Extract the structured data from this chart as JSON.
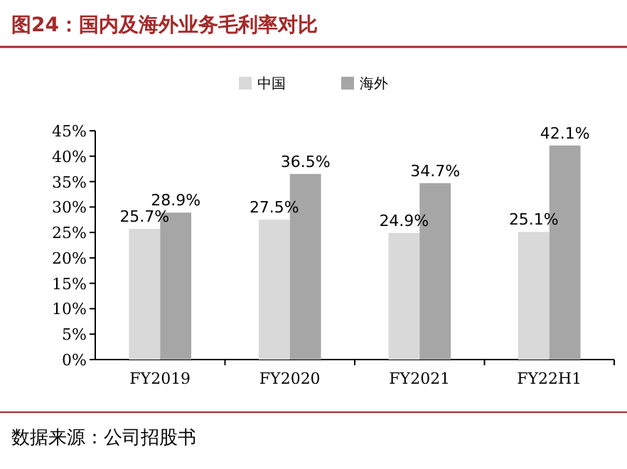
{
  "chart_data": {
    "type": "bar",
    "title": "图24：国内及海外业务毛利率对比",
    "categories": [
      "FY2019",
      "FY2020",
      "FY2021",
      "FY22H1"
    ],
    "series": [
      {
        "name": "中国",
        "color": "#d9d9d9",
        "values": [
          25.7,
          27.5,
          24.9,
          25.1
        ],
        "value_labels": [
          "25.7%",
          "27.5%",
          "24.9%",
          "25.1%"
        ]
      },
      {
        "name": "海外",
        "color": "#a6a6a6",
        "values": [
          28.9,
          36.5,
          34.7,
          42.1
        ],
        "value_labels": [
          "28.9%",
          "36.5%",
          "34.7%",
          "42.1%"
        ]
      }
    ],
    "ylim": [
      0,
      45
    ],
    "yticks": [
      {
        "value": 0,
        "label": "0%"
      },
      {
        "value": 5,
        "label": "5%"
      },
      {
        "value": 10,
        "label": "10%"
      },
      {
        "value": 15,
        "label": "15%"
      },
      {
        "value": 20,
        "label": "20%"
      },
      {
        "value": 25,
        "label": "25%"
      },
      {
        "value": 30,
        "label": "30%"
      },
      {
        "value": 35,
        "label": "35%"
      },
      {
        "value": 40,
        "label": "40%"
      },
      {
        "value": 45,
        "label": "45%"
      }
    ],
    "legend": "top",
    "grid": false,
    "annotations": [
      "数据来源：公司招股书"
    ]
  }
}
